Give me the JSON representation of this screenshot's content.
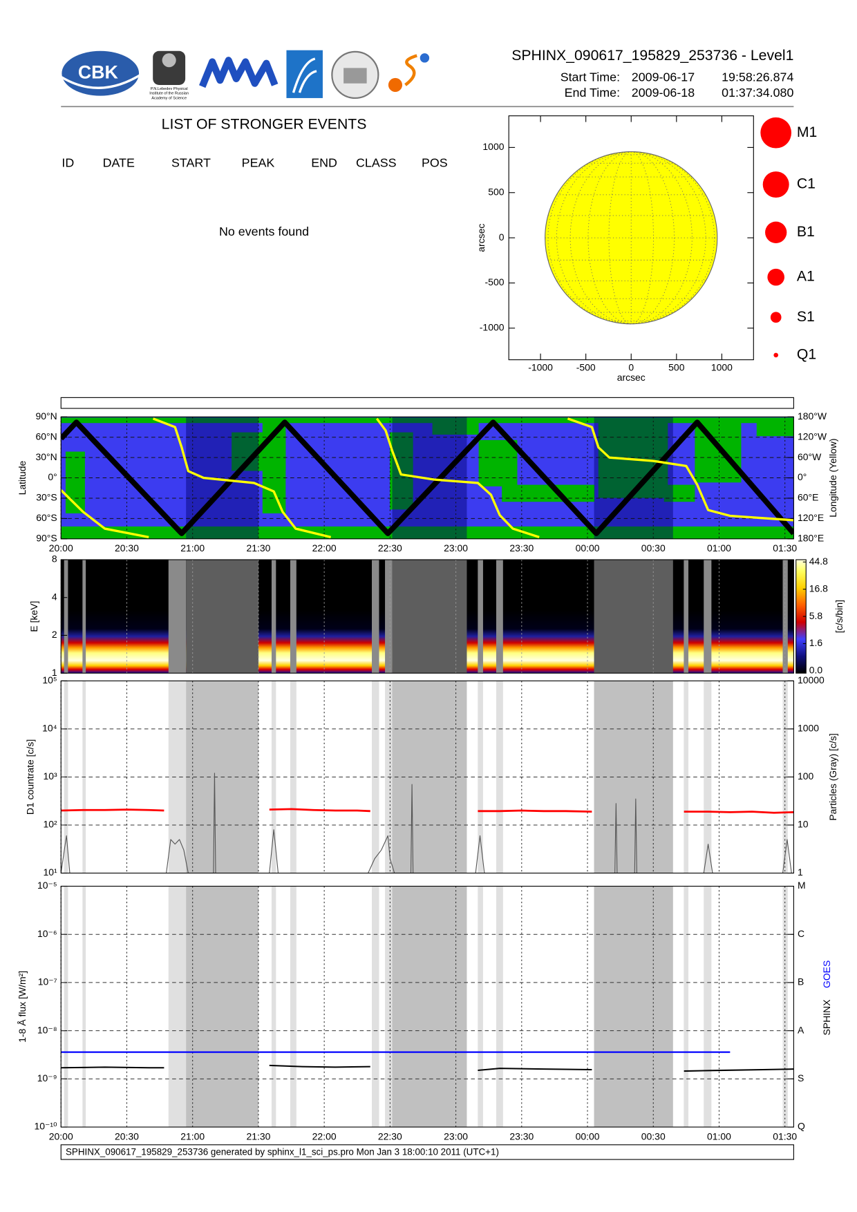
{
  "header": {
    "logo_text": "CBK",
    "lebedev_caption": [
      "P.N.Lebedev Physical",
      "Institute of the Russian",
      "Academy of Science"
    ],
    "title": "SPHINX_090617_195829_253736 - Level1",
    "start_label": "Start Time:",
    "start_date": "2009-06-17",
    "start_time": "19:58:26.874",
    "end_label": "End Time:",
    "end_date": "2009-06-18",
    "end_time": "01:37:34.080"
  },
  "events": {
    "title": "LIST OF STRONGER EVENTS",
    "columns": [
      "ID",
      "DATE",
      "START",
      "PEAK",
      "END",
      "CLASS",
      "POS"
    ],
    "message": "No events found"
  },
  "time_axis": {
    "xlim": [
      0,
      334
    ],
    "xticks": [
      {
        "value": 0,
        "label": "20:00"
      },
      {
        "value": 30,
        "label": "20:30"
      },
      {
        "value": 60,
        "label": "21:00"
      },
      {
        "value": 90,
        "label": "21:30"
      },
      {
        "value": 120,
        "label": "22:00"
      },
      {
        "value": 150,
        "label": "22:30"
      },
      {
        "value": 180,
        "label": "23:00"
      },
      {
        "value": 210,
        "label": "23:30"
      },
      {
        "value": 240,
        "label": "00:00"
      },
      {
        "value": 270,
        "label": "00:30"
      },
      {
        "value": 300,
        "label": "01:00"
      },
      {
        "value": 330,
        "label": "01:30"
      }
    ]
  },
  "intervals": {
    "eclipse": [
      [
        57,
        90
      ],
      [
        151,
        185
      ],
      [
        243,
        279
      ]
    ],
    "particles": [
      [
        1.4,
        3.2
      ],
      [
        9.8,
        11.3
      ],
      [
        49,
        57
      ],
      [
        96,
        98
      ],
      [
        104.5,
        107.3
      ],
      [
        141.7,
        145
      ],
      [
        147.7,
        151
      ],
      [
        190,
        192.4
      ],
      [
        198.4,
        201.5
      ],
      [
        283.9,
        286
      ],
      [
        293,
        296.5
      ],
      [
        329,
        331.3
      ]
    ]
  },
  "chart_data": [
    {
      "type": "disk",
      "xlabel": "arcsec",
      "ylabel": "arcsec",
      "xlim": [
        -1350,
        1350
      ],
      "ylim": [
        -1350,
        1350
      ],
      "xticks": [
        -1000,
        -500,
        0,
        500,
        1000
      ],
      "yticks": [
        -1000,
        -500,
        0,
        500,
        1000
      ],
      "disk_radius": 950,
      "color": "#ffff00",
      "legend": [
        "M1",
        "C1",
        "B1",
        "A1",
        "S1",
        "Q1"
      ],
      "legend_color": "#ff0000"
    },
    {
      "type": "line",
      "ylabel": "Latitude",
      "y2label": "Longitude (Yellow)",
      "grid": true,
      "ylim": [
        -90,
        90
      ],
      "yticks": [
        {
          "value": -90,
          "label": "90°S"
        },
        {
          "value": -60,
          "label": "60°S"
        },
        {
          "value": -30,
          "label": "30°S"
        },
        {
          "value": 0,
          "label": "0°"
        },
        {
          "value": 30,
          "label": "30°N"
        },
        {
          "value": 60,
          "label": "60°N"
        },
        {
          "value": 90,
          "label": "90°N"
        }
      ],
      "y2lim": [
        180,
        -180
      ],
      "y2ticks": [
        {
          "value": 180,
          "label": "180°E"
        },
        {
          "value": 120,
          "label": "120°E"
        },
        {
          "value": 60,
          "label": "60°E"
        },
        {
          "value": 0,
          "label": "0°"
        },
        {
          "value": -60,
          "label": "60°W"
        },
        {
          "value": -120,
          "label": "120°W"
        },
        {
          "value": -180,
          "label": "180°W"
        }
      ],
      "series": [
        {
          "color": "#000000",
          "x": [
            0,
            7,
            55,
            102,
            149,
            197,
            244,
            290,
            334
          ],
          "values": [
            58,
            82,
            -82,
            82,
            -82,
            82,
            -82,
            82,
            -82
          ]
        },
        {
          "color": "#ffff00",
          "axis": "y2",
          "x": [
            0,
            10,
            20,
            40,
            41,
            42,
            52,
            55,
            58,
            65,
            88,
            97,
            101,
            107,
            123,
            133,
            144,
            148,
            151,
            155,
            170,
            190,
            196,
            200,
            206,
            218,
            225,
            231,
            242,
            245,
            250,
            270,
            285,
            290,
            295,
            305,
            334
          ],
          "values": [
            36,
            100,
            150,
            175,
            null,
            -175,
            -150,
            -90,
            -20,
            0,
            15,
            40,
            100,
            150,
            175,
            null,
            -175,
            -140,
            -80,
            -10,
            5,
            15,
            50,
            110,
            150,
            175,
            null,
            -175,
            -150,
            -90,
            -60,
            -50,
            -35,
            20,
            95,
            112,
            125
          ]
        }
      ]
    },
    {
      "type": "heatmap",
      "ylabel": "E [keV]",
      "log": true,
      "ylim": [
        1,
        8
      ],
      "yticks": [
        1,
        2,
        4,
        8
      ],
      "colorbar": {
        "label": "[c/s/bin]",
        "ticks": [
          {
            "value": 0,
            "label": "0.0"
          },
          1.6,
          5.8,
          16.8,
          44.8
        ]
      }
    },
    {
      "type": "line",
      "ylabel": "D1 countrate [c/s]",
      "y2label": "Particles (Gray) [c/s]",
      "log": true,
      "grid": true,
      "ylim": [
        10,
        100000
      ],
      "yticks": [
        {
          "value": 10,
          "label": "10¹"
        },
        {
          "value": 100,
          "label": "10²"
        },
        {
          "value": 1000,
          "label": "10³"
        },
        {
          "value": 10000,
          "label": "10⁴"
        },
        {
          "value": 100000,
          "label": "10⁵"
        }
      ],
      "y2lim": [
        1,
        10000
      ],
      "y2ticks": [
        1,
        10,
        100,
        1000,
        10000
      ],
      "series": [
        {
          "color": "#ff0000",
          "x": [
            0,
            10,
            20,
            30,
            40,
            47,
            70,
            95,
            105,
            115,
            125,
            135,
            141,
            165,
            190,
            200,
            210,
            220,
            230,
            242,
            262,
            284,
            295,
            305,
            315,
            325,
            334
          ],
          "values": [
            200,
            205,
            205,
            210,
            205,
            200,
            null,
            210,
            215,
            205,
            200,
            200,
            195,
            null,
            195,
            195,
            200,
            195,
            195,
            190,
            null,
            190,
            190,
            185,
            190,
            180,
            185
          ]
        },
        {
          "color": "#555555",
          "axis": "y2",
          "x": [
            0,
            1.5,
            2.5,
            4,
            48,
            50,
            52,
            54,
            56,
            58,
            69.5,
            70,
            70.5,
            95,
            97,
            99,
            140,
            143,
            146,
            149,
            150,
            152,
            159.5,
            160,
            160.5,
            189,
            191,
            193,
            252.5,
            253,
            253.5,
            261.5,
            262,
            262.5,
            293,
            295,
            297,
            329,
            331,
            333
          ],
          "values": [
            1,
            3,
            6,
            1,
            1,
            5,
            4,
            5,
            3,
            1,
            1,
            120,
            1,
            1,
            8,
            1,
            1,
            2,
            3,
            6,
            2,
            1,
            1,
            70,
            1,
            1,
            6,
            1,
            1,
            28,
            1,
            1,
            35,
            1,
            1,
            4,
            1,
            1,
            5,
            1
          ]
        }
      ]
    },
    {
      "type": "line",
      "ylabel": "1-8 Å flux [W/m²]",
      "log": true,
      "grid": true,
      "ylim": [
        1e-10,
        1e-05
      ],
      "yticks": [
        {
          "value": 1e-10,
          "label": "10⁻¹⁰"
        },
        {
          "value": 1e-09,
          "label": "10⁻⁹"
        },
        {
          "value": 1e-08,
          "label": "10⁻⁸"
        },
        {
          "value": 1e-07,
          "label": "10⁻⁷"
        },
        {
          "value": 1e-06,
          "label": "10⁻⁶"
        },
        {
          "value": 1e-05,
          "label": "10⁻⁵"
        }
      ],
      "y2lim": [
        1e-10,
        1e-05
      ],
      "y2ticks": [
        {
          "value": 1e-10,
          "label": "Q"
        },
        {
          "value": 1e-09,
          "label": "S"
        },
        {
          "value": 1e-08,
          "label": "A"
        },
        {
          "value": 1e-07,
          "label": "B"
        },
        {
          "value": 1e-06,
          "label": "C"
        },
        {
          "value": 1e-05,
          "label": "M"
        }
      ],
      "series": [
        {
          "name": "SPHINX",
          "color": "#000000",
          "x": [
            0,
            20,
            40,
            47,
            70,
            95,
            110,
            125,
            141,
            165,
            190,
            200,
            220,
            242,
            262,
            284,
            300,
            320,
            334
          ],
          "values": [
            1.7e-09,
            1.75e-09,
            1.7e-09,
            1.7e-09,
            null,
            1.9e-09,
            1.8e-09,
            1.75e-09,
            1.8e-09,
            null,
            1.5e-09,
            1.65e-09,
            1.6e-09,
            1.55e-09,
            null,
            1.45e-09,
            1.5e-09,
            1.55e-09,
            1.6e-09
          ]
        },
        {
          "name": "GOES",
          "color": "#0000ff",
          "x": [
            0,
            305
          ],
          "values": [
            3.6e-09,
            3.6e-09
          ]
        }
      ]
    }
  ],
  "footer": "SPHINX_090617_195829_253736 generated by sphinx_l1_sci_ps.pro Mon Jan  3 18:00:10 2011 (UTC+1)"
}
